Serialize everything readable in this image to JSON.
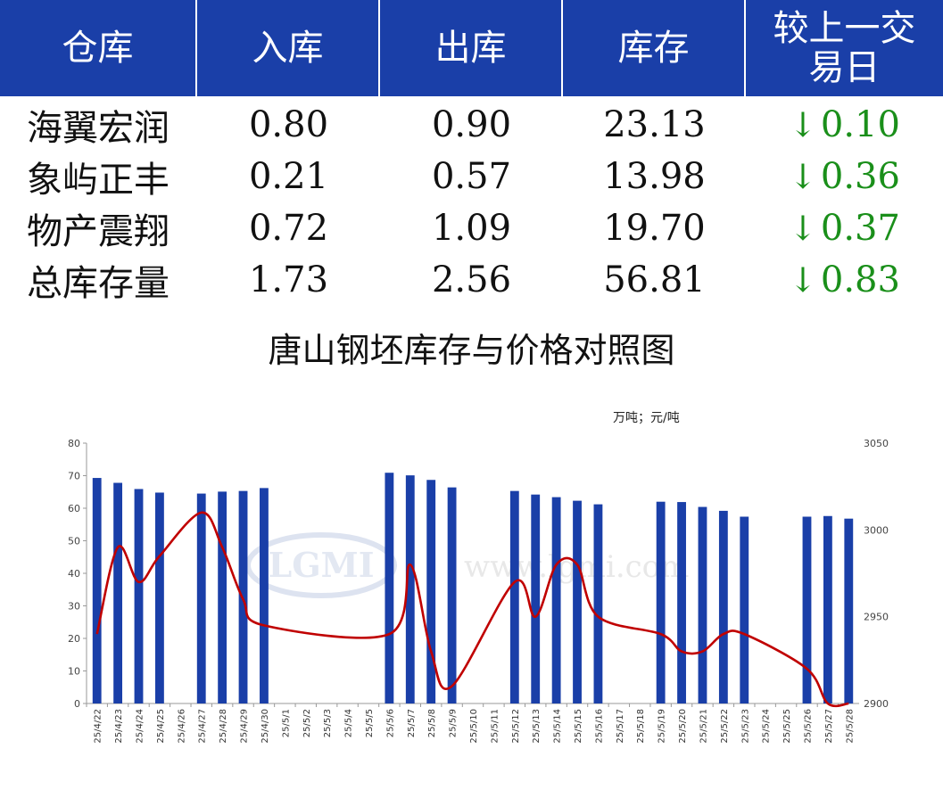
{
  "table": {
    "headers": [
      "仓库",
      "入库",
      "出库",
      "库存",
      "较上一交易日"
    ],
    "rows": [
      {
        "name": "海翼宏润",
        "in": "0.80",
        "out": "0.90",
        "stock": "23.13",
        "change": "0.10"
      },
      {
        "name": "象屿正丰",
        "in": "0.21",
        "out": "0.57",
        "stock": "13.98",
        "change": "0.36"
      },
      {
        "name": "物产震翔",
        "in": "0.72",
        "out": "1.09",
        "stock": "19.70",
        "change": "0.37"
      },
      {
        "name": "总库存量",
        "in": "1.73",
        "out": "2.56",
        "stock": "56.81",
        "change": "0.83"
      }
    ],
    "change_icon": "down-arrow-icon",
    "colors": {
      "header_bg": "#1a3fa8",
      "change_color": "#1a8f1a"
    }
  },
  "chart_data": {
    "type": "bar+line",
    "title": "唐山钢坯库存与价格对照图",
    "unit_label": "万吨；元/吨",
    "categories": [
      "25/4/22",
      "25/4/23",
      "25/4/24",
      "25/4/25",
      "25/4/26",
      "25/4/27",
      "25/4/28",
      "25/4/29",
      "25/4/30",
      "25/5/1",
      "25/5/2",
      "25/5/3",
      "25/5/4",
      "25/5/5",
      "25/5/6",
      "25/5/7",
      "25/5/8",
      "25/5/9",
      "25/5/10",
      "25/5/11",
      "25/5/12",
      "25/5/13",
      "25/5/14",
      "25/5/15",
      "25/5/16",
      "25/5/17",
      "25/5/18",
      "25/5/19",
      "25/5/20",
      "25/5/21",
      "25/5/22",
      "25/5/23",
      "25/5/24",
      "25/5/25",
      "25/5/26",
      "25/5/27",
      "25/5/28"
    ],
    "series": [
      {
        "axis": "left",
        "type": "bar",
        "color": "#1a3fa8",
        "values": [
          69.3,
          67.8,
          65.9,
          64.8,
          null,
          64.5,
          65.1,
          65.3,
          66.2,
          null,
          null,
          null,
          null,
          null,
          70.9,
          70.1,
          68.7,
          66.4,
          null,
          null,
          65.3,
          64.2,
          63.4,
          62.3,
          61.2,
          null,
          null,
          62.0,
          61.9,
          60.4,
          59.2,
          57.4,
          null,
          null,
          57.4,
          57.6,
          56.8
        ]
      },
      {
        "axis": "right",
        "type": "line",
        "color": "#c00000",
        "values": [
          2940,
          2990,
          2970,
          2985,
          null,
          3010,
          2990,
          2960,
          2945,
          null,
          null,
          null,
          null,
          null,
          2940,
          2980,
          2930,
          2910,
          null,
          null,
          2970,
          2950,
          2980,
          2980,
          2950,
          null,
          null,
          2940,
          2930,
          2930,
          2940,
          2940,
          null,
          null,
          2920,
          2900,
          2900
        ]
      }
    ],
    "y_left": {
      "min": 0,
      "max": 80,
      "ticks": [
        0,
        10,
        20,
        30,
        40,
        50,
        60,
        70,
        80
      ]
    },
    "y_right": {
      "min": 2900,
      "max": 3050,
      "ticks": [
        2900,
        2950,
        3000,
        3050
      ]
    },
    "watermark": {
      "logo": "LGMI",
      "url": "www.lgmi.com"
    }
  }
}
